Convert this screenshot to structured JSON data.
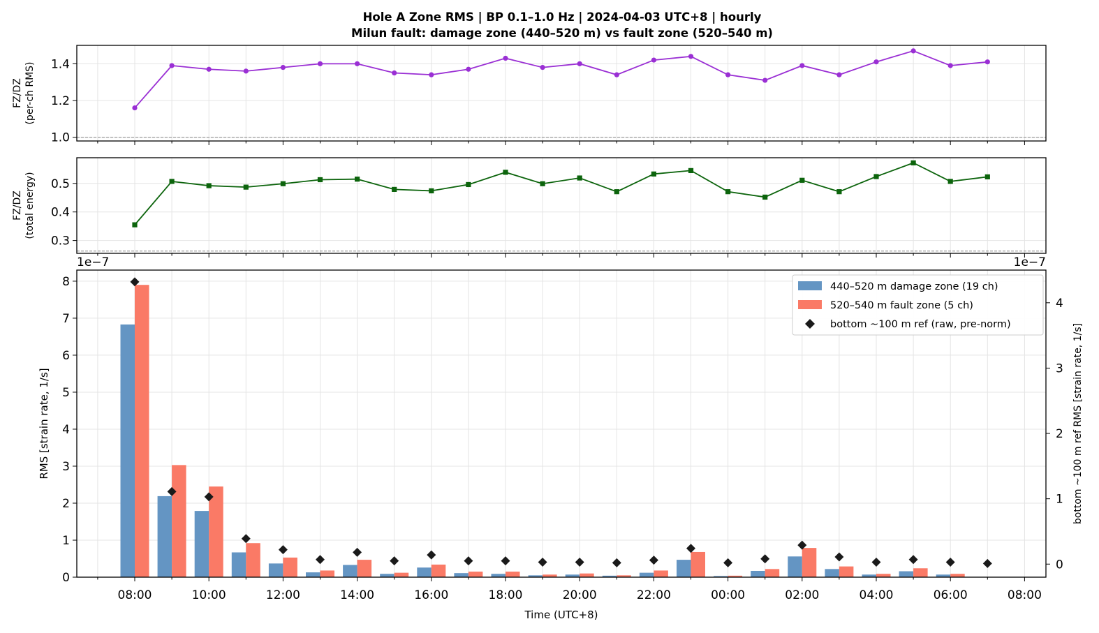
{
  "title_line1": "Hole A Zone RMS  |  BP 0.1–1.0 Hz  |  2024-04-03 UTC+8  |  hourly",
  "title_line2": "Milun fault: damage zone (440–520 m) vs fault zone (520–540 m)",
  "colors": {
    "damage_zone": "#6495c3",
    "fault_zone": "#fa7a66",
    "bottom_ref": "#1a1a1a",
    "ratio_rms": "#9a2fd4",
    "ratio_energy": "#0c640c"
  },
  "chart_data": [
    {
      "type": "line",
      "panel": "ratio-rms",
      "ylabel_lines": [
        "FZ/DZ",
        "(per-ch RMS)"
      ],
      "ylim": [
        0.98,
        1.5
      ],
      "yticks": [
        "1.0",
        "1.2",
        "1.4"
      ],
      "ytick_values": [
        1.0,
        1.2,
        1.4
      ],
      "reference_line": 1.0,
      "grid": true,
      "series": [
        {
          "marker": "circle",
          "x": [
            0,
            1,
            2,
            3,
            4,
            5,
            6,
            7,
            8,
            9,
            10,
            11,
            12,
            13,
            14,
            15,
            16,
            17,
            18,
            19,
            20,
            21,
            22,
            23
          ],
          "values": [
            1.16,
            1.39,
            1.37,
            1.36,
            1.38,
            1.4,
            1.4,
            1.35,
            1.34,
            1.37,
            1.43,
            1.38,
            1.4,
            1.34,
            1.42,
            1.44,
            1.34,
            1.31,
            1.39,
            1.34,
            1.41,
            1.47,
            1.39,
            1.41
          ]
        }
      ]
    },
    {
      "type": "line",
      "panel": "ratio-energy",
      "ylabel_lines": [
        "FZ/DZ",
        "(total energy)"
      ],
      "ylim": [
        0.255,
        0.59
      ],
      "yticks": [
        "0.3",
        "0.4",
        "0.5"
      ],
      "ytick_values": [
        0.3,
        0.4,
        0.5
      ],
      "reference_line": 0.263,
      "grid": true,
      "series": [
        {
          "marker": "square",
          "x": [
            0,
            1,
            2,
            3,
            4,
            5,
            6,
            7,
            8,
            9,
            10,
            11,
            12,
            13,
            14,
            15,
            16,
            17,
            18,
            19,
            20,
            21,
            22,
            23
          ],
          "values": [
            0.355,
            0.507,
            0.492,
            0.487,
            0.499,
            0.513,
            0.515,
            0.479,
            0.474,
            0.496,
            0.539,
            0.499,
            0.519,
            0.471,
            0.533,
            0.545,
            0.471,
            0.452,
            0.511,
            0.471,
            0.524,
            0.572,
            0.507,
            0.523
          ]
        }
      ]
    },
    {
      "type": "bar",
      "panel": "zone-rms",
      "xlabel": "Time (UTC+8)",
      "ylabel": "RMS  [strain rate, 1/s]",
      "ylabel_right": "bottom ~100 m ref RMS  [strain rate, 1/s]",
      "scale_label_left": "1e−7",
      "scale_label_right": "1e−7",
      "categories": [
        "08:00",
        "09:00",
        "10:00",
        "11:00",
        "12:00",
        "13:00",
        "14:00",
        "15:00",
        "16:00",
        "17:00",
        "18:00",
        "19:00",
        "20:00",
        "21:00",
        "22:00",
        "23:00",
        "00:00",
        "01:00",
        "02:00",
        "03:00",
        "04:00",
        "05:00",
        "06:00",
        "07:00"
      ],
      "xticks": [
        "08:00",
        "10:00",
        "12:00",
        "14:00",
        "16:00",
        "18:00",
        "20:00",
        "22:00",
        "00:00",
        "02:00",
        "04:00",
        "06:00",
        "08:00"
      ],
      "ylim": [
        0,
        8.3
      ],
      "yticks": [
        "0",
        "1",
        "2",
        "3",
        "4",
        "5",
        "6",
        "7",
        "8"
      ],
      "ytick_values": [
        0,
        1,
        2,
        3,
        4,
        5,
        6,
        7,
        8
      ],
      "ylim_right": [
        -0.2,
        4.5
      ],
      "yticks_right": [
        "0",
        "1",
        "2",
        "3",
        "4"
      ],
      "ytick_values_right": [
        0,
        1,
        2,
        3,
        4
      ],
      "grid": true,
      "legend_position": "top-right",
      "series": [
        {
          "name": "440–520 m  damage zone (19 ch)",
          "axis": "left",
          "values": [
            6.83,
            2.19,
            1.79,
            0.67,
            0.37,
            0.13,
            0.33,
            0.09,
            0.26,
            0.11,
            0.09,
            0.05,
            0.07,
            0.04,
            0.12,
            0.47,
            0.03,
            0.17,
            0.56,
            0.22,
            0.07,
            0.16,
            0.07,
            0.0
          ]
        },
        {
          "name": "520–540 m  fault zone (5 ch)",
          "axis": "left",
          "values": [
            7.9,
            3.03,
            2.45,
            0.92,
            0.53,
            0.18,
            0.47,
            0.12,
            0.34,
            0.15,
            0.15,
            0.07,
            0.1,
            0.05,
            0.18,
            0.68,
            0.04,
            0.22,
            0.79,
            0.29,
            0.09,
            0.24,
            0.09,
            0.0
          ]
        },
        {
          "name": "bottom ~100 m ref (raw, pre-norm)",
          "axis": "right",
          "values": [
            4.32,
            1.11,
            1.03,
            0.39,
            0.22,
            0.07,
            0.18,
            0.05,
            0.14,
            0.05,
            0.05,
            0.03,
            0.03,
            0.02,
            0.06,
            0.24,
            0.02,
            0.08,
            0.29,
            0.11,
            0.03,
            0.07,
            0.03,
            0.01
          ]
        }
      ]
    }
  ]
}
